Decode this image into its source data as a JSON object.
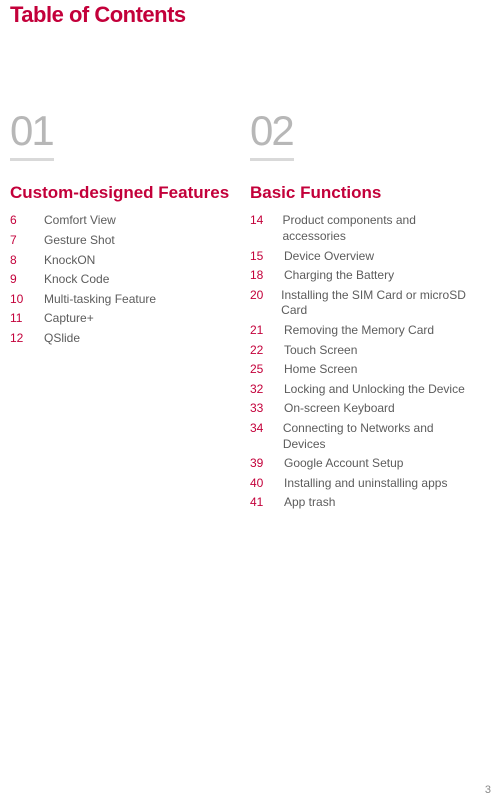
{
  "pageTitle": "Table of Contents",
  "pageNumber": "3",
  "colors": {
    "accent": "#c3003a",
    "sectionNum": "#b7b7b7",
    "underline": "#d9d9d9",
    "entryText": "#5c5c5c",
    "background": "#ffffff"
  },
  "typography": {
    "pageTitle_pt": 22,
    "sectionNum_pt": 42,
    "sectionTitle_pt": 17,
    "entry_pt": 12
  },
  "sections": [
    {
      "number": "01",
      "title": "Custom-designed Features",
      "entries": [
        {
          "page": "6",
          "label": "Comfort View"
        },
        {
          "page": "7",
          "label": "Gesture Shot"
        },
        {
          "page": "8",
          "label": "KnockON"
        },
        {
          "page": "9",
          "label": "Knock Code"
        },
        {
          "page": "10",
          "label": "Multi-tasking Feature"
        },
        {
          "page": "11",
          "label": "Capture+"
        },
        {
          "page": "12",
          "label": "QSlide"
        }
      ]
    },
    {
      "number": "02",
      "title": "Basic Functions",
      "entries": [
        {
          "page": "14",
          "label": "Product components and accessories"
        },
        {
          "page": "15",
          "label": "Device Overview"
        },
        {
          "page": "18",
          "label": "Charging the Battery"
        },
        {
          "page": "20",
          "label": "Installing the SIM Card or microSD Card"
        },
        {
          "page": "21",
          "label": "Removing the Memory Card"
        },
        {
          "page": "22",
          "label": "Touch Screen"
        },
        {
          "page": "25",
          "label": "Home Screen"
        },
        {
          "page": "32",
          "label": "Locking and Unlocking the Device"
        },
        {
          "page": "33",
          "label": "On-screen Keyboard"
        },
        {
          "page": "34",
          "label": "Connecting to Networks and Devices"
        },
        {
          "page": "39",
          "label": "Google Account Setup"
        },
        {
          "page": "40",
          "label": "Installing and uninstalling apps"
        },
        {
          "page": "41",
          "label": "App trash"
        }
      ]
    }
  ]
}
